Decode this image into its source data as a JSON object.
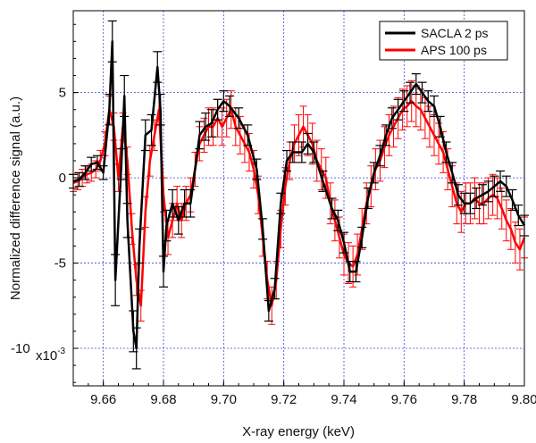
{
  "chart_data": {
    "type": "line",
    "title": "",
    "xlabel": "X-ray energy (keV)",
    "ylabel": "Normalized difference signal (a.u.)",
    "y_multiplier_label": "x10",
    "y_multiplier_exponent": "-3",
    "xlim": [
      9.65,
      9.8
    ],
    "ylim": [
      -12.2,
      9.8
    ],
    "x_ticks": [
      9.66,
      9.68,
      9.7,
      9.72,
      9.74,
      9.76,
      9.78,
      9.8
    ],
    "x_tick_labels": [
      "9.66",
      "9.68",
      "9.70",
      "9.72",
      "9.74",
      "9.76",
      "9.78",
      "9.80"
    ],
    "y_ticks": [
      -10,
      -5,
      0,
      5
    ],
    "y_tick_labels": [
      "-10",
      "-5",
      "0",
      "5"
    ],
    "grid": true,
    "legend_position": "top-right",
    "series": [
      {
        "name": "SACLA 2 ps",
        "color": "#000000",
        "x": [
          9.65,
          9.652,
          9.654,
          9.656,
          9.658,
          9.66,
          9.662,
          9.663,
          9.664,
          9.666,
          9.667,
          9.668,
          9.67,
          9.671,
          9.672,
          9.674,
          9.676,
          9.678,
          9.679,
          9.68,
          9.681,
          9.683,
          9.685,
          9.687,
          9.689,
          9.692,
          9.694,
          9.696,
          9.698,
          9.7,
          9.702,
          9.705,
          9.708,
          9.711,
          9.713,
          9.715,
          9.717,
          9.719,
          9.721,
          9.723,
          9.726,
          9.728,
          9.73,
          9.733,
          9.736,
          9.738,
          9.74,
          9.742,
          9.744,
          9.746,
          9.748,
          9.75,
          9.752,
          9.754,
          9.756,
          9.758,
          9.76,
          9.762,
          9.764,
          9.766,
          9.768,
          9.77,
          9.772,
          9.774,
          9.776,
          9.778,
          9.78,
          9.782,
          9.784,
          9.786,
          9.788,
          9.79,
          9.792,
          9.794,
          9.796,
          9.798,
          9.8
        ],
        "values": [
          -0.2,
          -0.1,
          0.3,
          0.8,
          0.9,
          0.3,
          4.0,
          8.0,
          -6.0,
          0.8,
          4.8,
          -2.5,
          -9.0,
          -10.0,
          -4.0,
          2.5,
          2.8,
          6.5,
          4.0,
          -5.5,
          -2.8,
          -1.5,
          -2.5,
          -1.5,
          -1.5,
          2.5,
          3.0,
          3.2,
          4.0,
          4.5,
          4.2,
          3.5,
          2.5,
          0.5,
          -3.0,
          -7.8,
          -6.5,
          -1.5,
          1.0,
          1.5,
          1.5,
          2.0,
          1.5,
          -0.2,
          -1.8,
          -2.5,
          -3.8,
          -5.5,
          -5.5,
          -3.5,
          -1.2,
          0.3,
          1.3,
          2.5,
          3.5,
          4.0,
          4.5,
          5.0,
          5.5,
          5.0,
          4.5,
          4.2,
          3.0,
          1.5,
          0.3,
          -1.0,
          -1.5,
          -1.5,
          -1.2,
          -1.0,
          -0.8,
          -0.5,
          -0.2,
          -0.5,
          -1.3,
          -2.2,
          -2.8
        ],
        "errors": [
          0.4,
          0.4,
          0.4,
          0.4,
          0.4,
          0.4,
          0.9,
          1.2,
          1.5,
          0.9,
          1.2,
          1.0,
          1.2,
          1.2,
          1.0,
          0.9,
          0.9,
          0.9,
          0.9,
          0.9,
          0.9,
          0.8,
          0.8,
          0.8,
          0.8,
          0.8,
          0.8,
          0.8,
          0.6,
          0.6,
          0.6,
          0.6,
          0.6,
          0.6,
          0.6,
          0.6,
          0.6,
          0.6,
          0.6,
          0.6,
          0.6,
          0.6,
          0.6,
          0.6,
          0.6,
          0.6,
          0.6,
          0.6,
          0.6,
          0.6,
          0.6,
          0.6,
          0.6,
          0.6,
          0.6,
          0.6,
          0.6,
          0.6,
          0.6,
          0.6,
          0.6,
          0.6,
          0.6,
          0.6,
          0.6,
          0.6,
          0.6,
          0.6,
          0.6,
          0.6,
          0.6,
          0.6,
          0.6,
          0.6,
          0.6,
          0.6,
          0.6
        ]
      },
      {
        "name": "APS 100 ps",
        "color": "#ff0000",
        "x": [
          9.65,
          9.6515,
          9.653,
          9.6545,
          9.656,
          9.6575,
          9.659,
          9.6605,
          9.662,
          9.6635,
          9.665,
          9.6665,
          9.668,
          9.6695,
          9.671,
          9.6725,
          9.674,
          9.6755,
          9.677,
          9.6785,
          9.68,
          9.6815,
          9.683,
          9.6845,
          9.686,
          9.6875,
          9.689,
          9.6905,
          9.692,
          9.6935,
          9.695,
          9.6965,
          9.698,
          9.6995,
          9.701,
          9.7025,
          9.704,
          9.7055,
          9.707,
          9.7085,
          9.71,
          9.7115,
          9.713,
          9.7145,
          9.716,
          9.7175,
          9.719,
          9.7205,
          9.722,
          9.7235,
          9.725,
          9.7265,
          9.728,
          9.7295,
          9.731,
          9.7325,
          9.734,
          9.7355,
          9.737,
          9.7385,
          9.74,
          9.7415,
          9.743,
          9.7445,
          9.746,
          9.7475,
          9.749,
          9.7505,
          9.752,
          9.7535,
          9.755,
          9.7565,
          9.758,
          9.7595,
          9.761,
          9.7625,
          9.764,
          9.7655,
          9.767,
          9.7685,
          9.77,
          9.7715,
          9.773,
          9.7745,
          9.776,
          9.7775,
          9.779,
          9.7805,
          9.782,
          9.7835,
          9.785,
          9.7865,
          9.788,
          9.7895,
          9.791,
          9.7925,
          9.794,
          9.7955,
          9.797,
          9.7985,
          9.8
        ],
        "values": [
          -0.3,
          -0.2,
          0.0,
          0.2,
          0.3,
          0.5,
          1.0,
          2.0,
          4.0,
          3.0,
          0.0,
          3.0,
          1.0,
          -3.0,
          -6.0,
          -7.5,
          -2.0,
          1.0,
          2.5,
          4.0,
          -1.0,
          -3.5,
          -2.5,
          -1.5,
          -2.5,
          -1.5,
          -1.0,
          0.5,
          2.0,
          2.5,
          3.0,
          3.0,
          3.5,
          3.0,
          3.5,
          4.0,
          3.0,
          2.5,
          2.0,
          1.5,
          0.5,
          -1.0,
          -3.5,
          -6.0,
          -7.5,
          -6.0,
          -3.0,
          -0.5,
          1.0,
          2.0,
          2.5,
          3.0,
          2.5,
          2.0,
          1.0,
          0.5,
          0.0,
          -1.5,
          -2.5,
          -3.5,
          -4.5,
          -5.0,
          -5.2,
          -4.5,
          -3.0,
          -1.5,
          -0.5,
          0.5,
          1.0,
          1.8,
          2.5,
          3.0,
          3.5,
          4.0,
          4.2,
          4.5,
          4.2,
          4.0,
          3.5,
          3.0,
          2.5,
          2.0,
          1.5,
          0.5,
          -0.5,
          -1.5,
          -2.0,
          -1.5,
          -1.5,
          -1.2,
          -1.5,
          -1.5,
          -1.2,
          -1.0,
          -1.2,
          -1.8,
          -2.5,
          -3.0,
          -3.8,
          -4.2,
          -3.5
        ],
        "errors": [
          0.5,
          0.5,
          0.5,
          0.5,
          0.5,
          0.5,
          0.6,
          0.7,
          0.8,
          0.8,
          0.8,
          0.8,
          0.8,
          0.9,
          0.9,
          0.9,
          0.9,
          0.9,
          0.9,
          0.9,
          1.0,
          1.0,
          1.0,
          1.0,
          1.0,
          1.0,
          1.0,
          1.0,
          1.0,
          1.0,
          1.1,
          1.1,
          1.1,
          1.1,
          1.1,
          1.1,
          1.1,
          1.1,
          1.1,
          1.1,
          1.1,
          1.1,
          1.1,
          1.1,
          1.1,
          1.1,
          1.1,
          1.1,
          1.1,
          1.1,
          1.2,
          1.2,
          1.2,
          1.2,
          1.2,
          1.2,
          1.2,
          1.2,
          1.2,
          1.2,
          1.2,
          1.2,
          1.2,
          1.2,
          1.2,
          1.2,
          1.2,
          1.2,
          1.2,
          1.2,
          1.2,
          1.2,
          1.2,
          1.2,
          1.2,
          1.2,
          1.2,
          1.2,
          1.2,
          1.2,
          1.2,
          1.2,
          1.2,
          1.2,
          1.2,
          1.2,
          1.2,
          1.2,
          1.2,
          1.2,
          1.2,
          1.2,
          1.2,
          1.2,
          1.2,
          1.2,
          1.2,
          1.2,
          1.2,
          1.2,
          1.2
        ]
      }
    ]
  }
}
